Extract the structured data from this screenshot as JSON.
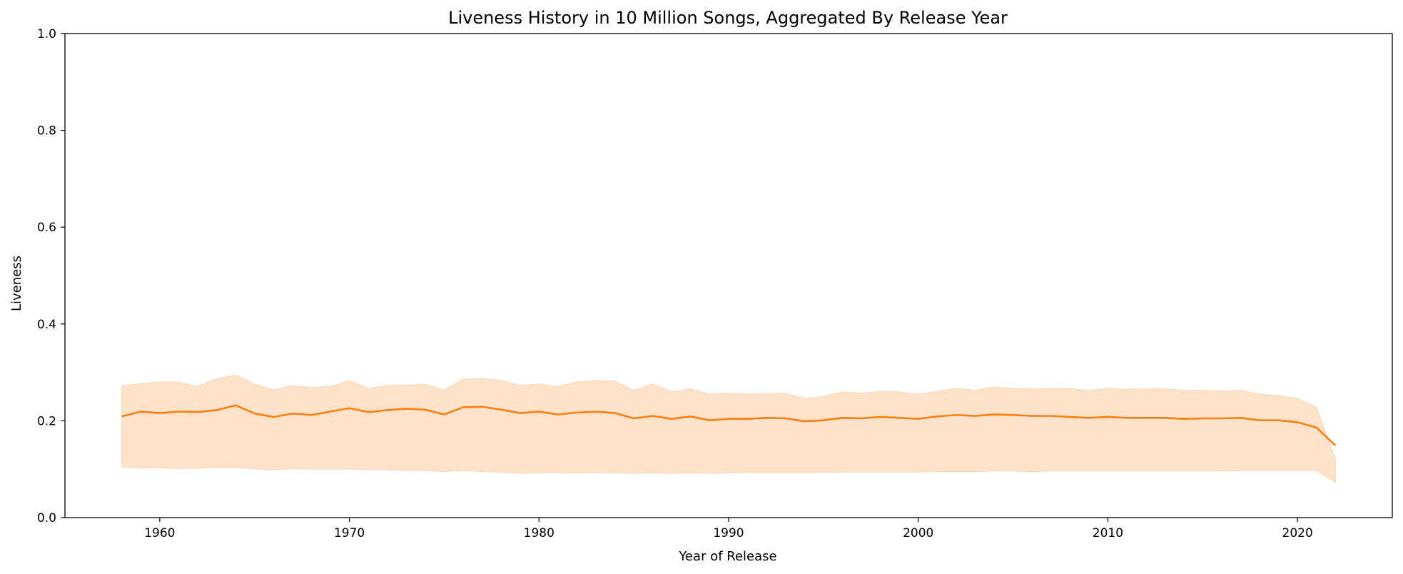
{
  "chart_data": {
    "type": "line",
    "title": "Liveness History in 10 Million Songs, Aggregated By Release Year",
    "xlabel": "Year of Release",
    "ylabel": "Liveness",
    "xlim": [
      1955,
      2025
    ],
    "ylim": [
      0,
      1.0
    ],
    "xticks": [
      1960,
      1970,
      1980,
      1990,
      2000,
      2010,
      2020
    ],
    "xtick_labels": [
      "1960",
      "1970",
      "1980",
      "1990",
      "2000",
      "2010",
      "2020"
    ],
    "yticks": [
      0,
      0.2,
      0.4,
      0.6,
      0.8,
      1.0
    ],
    "ytick_labels": [
      "0.0",
      "0.2",
      "0.4",
      "0.6",
      "0.8",
      "1.0"
    ],
    "grid": false,
    "colors": {
      "line": "#ff7f0e",
      "band": "#fdd8b8",
      "band_opacity": 0.75
    },
    "x": [
      1958,
      1959,
      1960,
      1961,
      1962,
      1963,
      1964,
      1965,
      1966,
      1967,
      1968,
      1969,
      1970,
      1971,
      1972,
      1973,
      1974,
      1975,
      1976,
      1977,
      1978,
      1979,
      1980,
      1981,
      1982,
      1983,
      1984,
      1985,
      1986,
      1987,
      1988,
      1989,
      1990,
      1991,
      1992,
      1993,
      1994,
      1995,
      1996,
      1997,
      1998,
      1999,
      2000,
      2001,
      2002,
      2003,
      2004,
      2005,
      2006,
      2007,
      2008,
      2009,
      2010,
      2011,
      2012,
      2013,
      2014,
      2015,
      2016,
      2017,
      2018,
      2019,
      2020,
      2021,
      2022
    ],
    "series": [
      {
        "values": [
          0.209,
          0.219,
          0.216,
          0.219,
          0.218,
          0.222,
          0.232,
          0.215,
          0.208,
          0.215,
          0.212,
          0.219,
          0.226,
          0.218,
          0.222,
          0.225,
          0.223,
          0.213,
          0.228,
          0.229,
          0.223,
          0.216,
          0.219,
          0.213,
          0.217,
          0.219,
          0.216,
          0.205,
          0.21,
          0.204,
          0.209,
          0.201,
          0.204,
          0.204,
          0.206,
          0.205,
          0.199,
          0.201,
          0.206,
          0.205,
          0.208,
          0.206,
          0.204,
          0.209,
          0.212,
          0.21,
          0.213,
          0.212,
          0.21,
          0.21,
          0.208,
          0.206,
          0.208,
          0.206,
          0.206,
          0.206,
          0.204,
          0.205,
          0.205,
          0.206,
          0.201,
          0.201,
          0.197,
          0.186,
          0.149
        ],
        "band_upper": [
          0.272,
          0.277,
          0.28,
          0.28,
          0.271,
          0.287,
          0.295,
          0.276,
          0.264,
          0.273,
          0.269,
          0.271,
          0.283,
          0.267,
          0.273,
          0.274,
          0.275,
          0.264,
          0.286,
          0.288,
          0.284,
          0.273,
          0.276,
          0.271,
          0.28,
          0.283,
          0.282,
          0.263,
          0.276,
          0.26,
          0.266,
          0.255,
          0.257,
          0.255,
          0.256,
          0.257,
          0.246,
          0.25,
          0.26,
          0.257,
          0.261,
          0.26,
          0.255,
          0.261,
          0.267,
          0.263,
          0.27,
          0.267,
          0.266,
          0.267,
          0.267,
          0.263,
          0.267,
          0.265,
          0.266,
          0.266,
          0.263,
          0.263,
          0.262,
          0.263,
          0.255,
          0.252,
          0.246,
          0.228,
          0.122
        ],
        "band_lower": [
          0.105,
          0.102,
          0.103,
          0.101,
          0.102,
          0.103,
          0.103,
          0.101,
          0.098,
          0.101,
          0.1,
          0.1,
          0.1,
          0.099,
          0.099,
          0.097,
          0.097,
          0.095,
          0.097,
          0.095,
          0.094,
          0.091,
          0.092,
          0.093,
          0.092,
          0.093,
          0.092,
          0.091,
          0.092,
          0.091,
          0.092,
          0.091,
          0.092,
          0.093,
          0.093,
          0.093,
          0.093,
          0.093,
          0.094,
          0.094,
          0.094,
          0.094,
          0.094,
          0.095,
          0.095,
          0.095,
          0.096,
          0.096,
          0.095,
          0.096,
          0.096,
          0.096,
          0.096,
          0.096,
          0.096,
          0.096,
          0.096,
          0.096,
          0.096,
          0.097,
          0.097,
          0.097,
          0.097,
          0.097,
          0.073
        ]
      }
    ]
  }
}
